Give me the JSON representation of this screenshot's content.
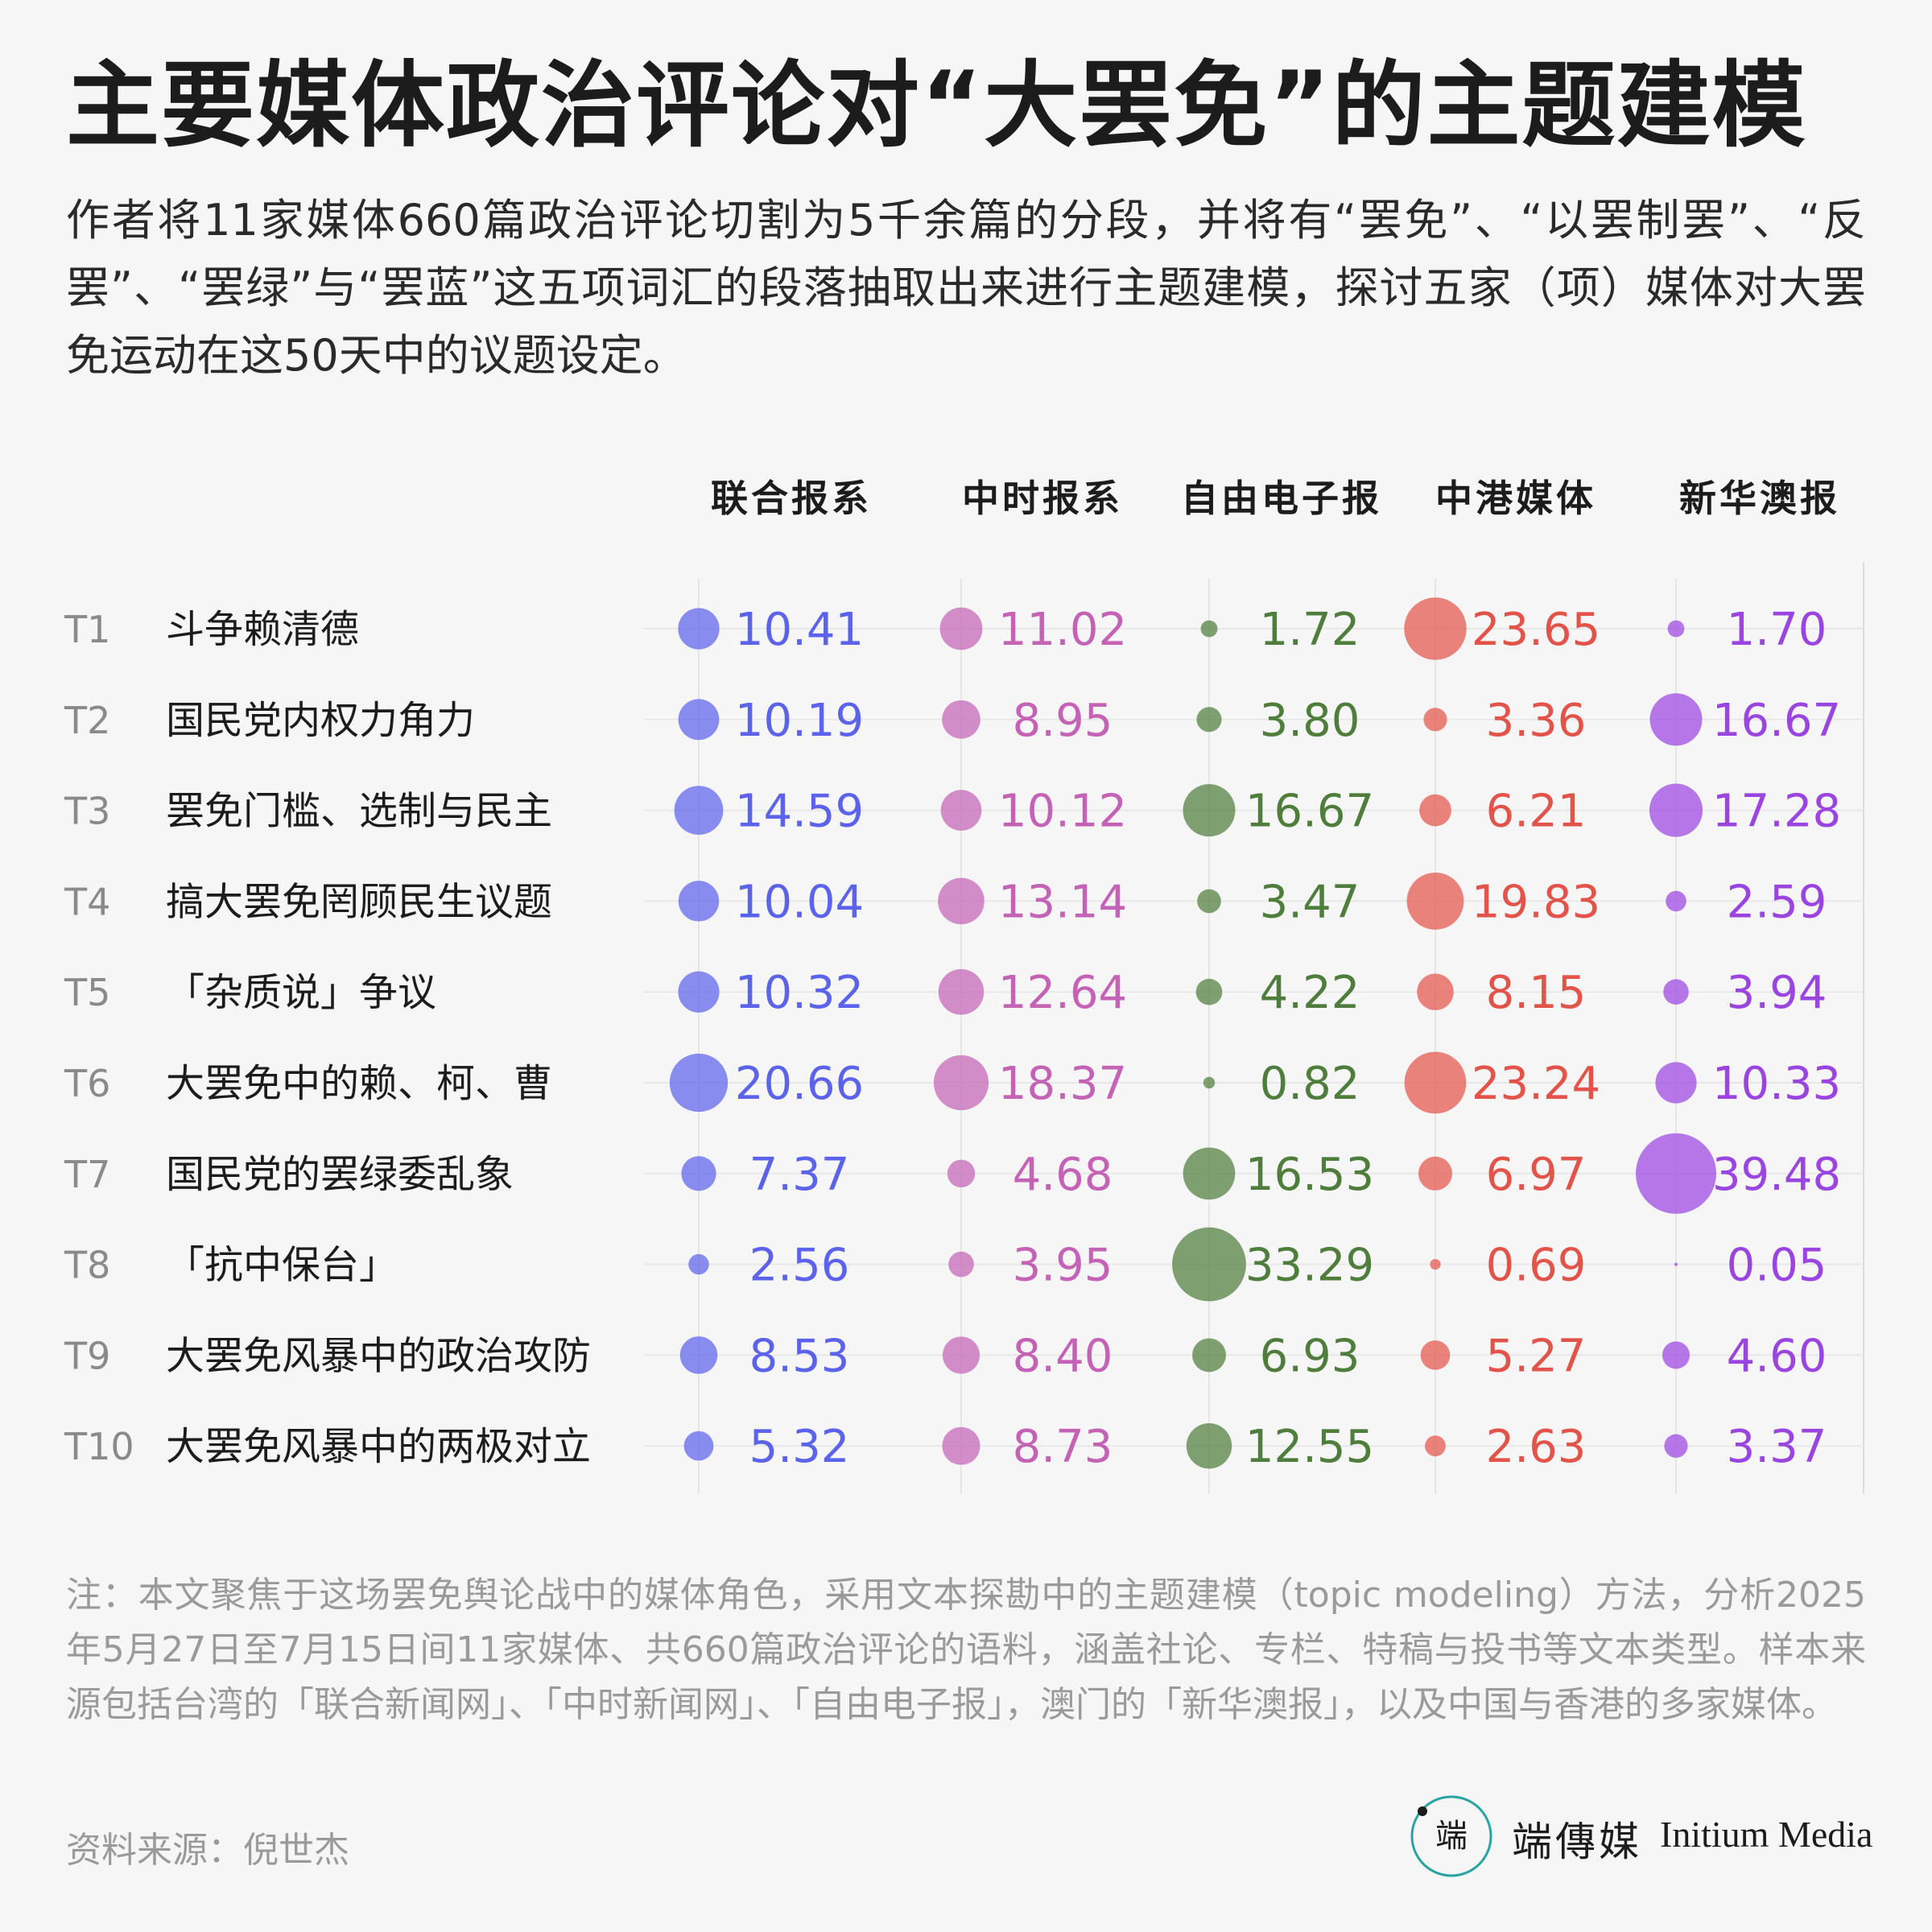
{
  "title": "主要媒体政治评论对“大罢免”的主题建模",
  "subtitle": "作者将11家媒体660篇政治评论切割为5千余篇的分段，并将有“罢免”、“以罢制罢”、“反罢”、“罢绿”与“罢蓝”这五项词汇的段落抽取出来进行主题建模，探讨五家（项）媒体对大罢免运动在这50天中的议题设定。",
  "chart_data": {
    "type": "bubble-table",
    "columns": [
      {
        "name": "联合报系",
        "color": "#5b63ea"
      },
      {
        "name": "中时报系",
        "color": "#c462b6"
      },
      {
        "name": "自由电子报",
        "color": "#4f7d3c"
      },
      {
        "name": "中港媒体",
        "color": "#e2544a"
      },
      {
        "name": "新华澳报",
        "color": "#9b45e0"
      }
    ],
    "rows": [
      {
        "id": "T1",
        "label": "斗争赖清德",
        "values": [
          "10.41",
          "11.02",
          "1.72",
          "23.65",
          "1.70"
        ]
      },
      {
        "id": "T2",
        "label": "国民党内权力角力",
        "values": [
          "10.19",
          "8.95",
          "3.80",
          "3.36",
          "16.67"
        ]
      },
      {
        "id": "T3",
        "label": "罢免门槛、选制与民主",
        "values": [
          "14.59",
          "10.12",
          "16.67",
          "6.21",
          "17.28"
        ]
      },
      {
        "id": "T4",
        "label": "搞大罢免罔顾民生议题",
        "values": [
          "10.04",
          "13.14",
          "3.47",
          "19.83",
          "2.59"
        ]
      },
      {
        "id": "T5",
        "label": "「杂质说」争议",
        "values": [
          "10.32",
          "12.64",
          "4.22",
          "8.15",
          "3.94"
        ]
      },
      {
        "id": "T6",
        "label": "大罢免中的赖、柯、曹",
        "values": [
          "20.66",
          "18.37",
          "0.82",
          "23.24",
          "10.33"
        ]
      },
      {
        "id": "T7",
        "label": "国民党的罢绿委乱象",
        "values": [
          "7.37",
          "4.68",
          "16.53",
          "6.97",
          "39.48"
        ]
      },
      {
        "id": "T8",
        "label": "「抗中保台」",
        "values": [
          "2.56",
          "3.95",
          "33.29",
          "0.69",
          "0.05"
        ]
      },
      {
        "id": "T9",
        "label": "大罢免风暴中的政治攻防",
        "values": [
          "8.53",
          "8.40",
          "6.93",
          "5.27",
          "4.60"
        ]
      },
      {
        "id": "T10",
        "label": "大罢免风暴中的两极对立",
        "values": [
          "5.32",
          "8.73",
          "12.55",
          "2.63",
          "3.37"
        ]
      }
    ],
    "max_value": 39.48,
    "grid": true
  },
  "note": "注：本文聚焦于这场罢免舆论战中的媒体角色，采用文本探勘中的主题建模（topic modeling）方法，分析2025年5月27日至7月15日间11家媒体、共660篇政治评论的语料，涵盖社论、专栏、特稿与投书等文本类型。样本来源包括台湾的「联合新闻网」、「中时新闻网」、「自由电子报」，澳门的「新华澳报」，以及中国与香港的多家媒体。",
  "source": "资料来源：倪世杰",
  "brand": {
    "cn": "端傳媒",
    "en": "Initium Media",
    "logo_text": "端"
  }
}
